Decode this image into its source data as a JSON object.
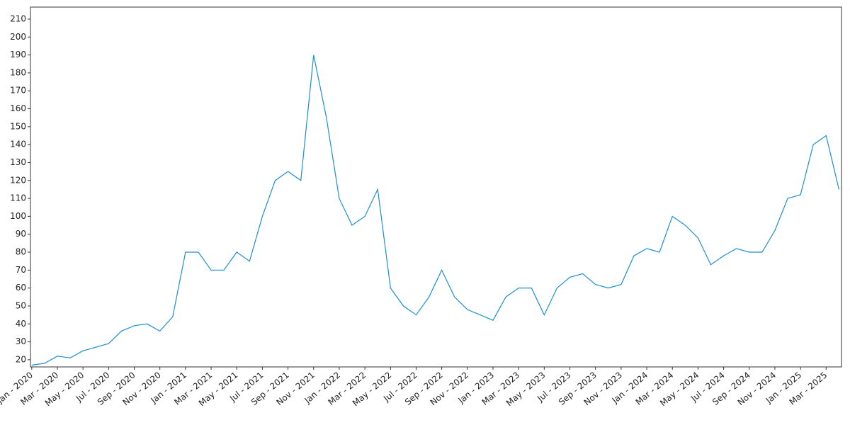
{
  "chart_data": {
    "type": "line",
    "x": [
      "2020-01",
      "2020-02",
      "2020-03",
      "2020-04",
      "2020-05",
      "2020-06",
      "2020-07",
      "2020-08",
      "2020-09",
      "2020-10",
      "2020-11",
      "2020-12",
      "2021-01",
      "2021-02",
      "2021-03",
      "2021-04",
      "2021-05",
      "2021-06",
      "2021-07",
      "2021-08",
      "2021-09",
      "2021-10",
      "2021-11",
      "2021-12",
      "2022-01",
      "2022-02",
      "2022-03",
      "2022-04",
      "2022-05",
      "2022-06",
      "2022-07",
      "2022-08",
      "2022-09",
      "2022-10",
      "2022-11",
      "2022-12",
      "2023-01",
      "2023-02",
      "2023-03",
      "2023-04",
      "2023-05",
      "2023-06",
      "2023-07",
      "2023-08",
      "2023-09",
      "2023-10",
      "2023-11",
      "2023-12",
      "2024-01",
      "2024-02",
      "2024-03",
      "2024-04",
      "2024-05",
      "2024-06",
      "2024-07",
      "2024-08",
      "2024-09",
      "2024-10",
      "2024-11",
      "2024-12",
      "2025-01",
      "2025-02",
      "2025-03",
      "2025-04"
    ],
    "series": [
      {
        "color": "#1a8fd5",
        "values": [
          17,
          18,
          22,
          21,
          25,
          27,
          29,
          36,
          39,
          40,
          36,
          44,
          80,
          80,
          70,
          70,
          80,
          75,
          100,
          120,
          125,
          120,
          190,
          155,
          110,
          95,
          100,
          115,
          60,
          50,
          45,
          55,
          70,
          55,
          48,
          45,
          42,
          55,
          60,
          60,
          45,
          60,
          66,
          68,
          62,
          60,
          62,
          78,
          82,
          80,
          100,
          95,
          88,
          73,
          78,
          82,
          80,
          80,
          92,
          110,
          112,
          140,
          145,
          115
        ]
      }
    ],
    "xlim": [
      "2019-12.9",
      "2025-04.2"
    ],
    "xticks": [
      {
        "value": "2020-01",
        "label": "Jan - 2020"
      },
      {
        "value": "2020-03",
        "label": "Mar - 2020"
      },
      {
        "value": "2020-05",
        "label": "May - 2020"
      },
      {
        "value": "2020-07",
        "label": "Jul - 2020"
      },
      {
        "value": "2020-09",
        "label": "Sep - 2020"
      },
      {
        "value": "2020-11",
        "label": "Nov - 2020"
      },
      {
        "value": "2021-01",
        "label": "Jan - 2021"
      },
      {
        "value": "2021-03",
        "label": "Mar - 2021"
      },
      {
        "value": "2021-05",
        "label": "May - 2021"
      },
      {
        "value": "2021-07",
        "label": "Jul - 2021"
      },
      {
        "value": "2021-09",
        "label": "Sep - 2021"
      },
      {
        "value": "2021-11",
        "label": "Nov - 2021"
      },
      {
        "value": "2022-01",
        "label": "Jan - 2022"
      },
      {
        "value": "2022-03",
        "label": "Mar - 2022"
      },
      {
        "value": "2022-05",
        "label": "May - 2022"
      },
      {
        "value": "2022-07",
        "label": "Jul - 2022"
      },
      {
        "value": "2022-09",
        "label": "Sep - 2022"
      },
      {
        "value": "2022-11",
        "label": "Nov - 2022"
      },
      {
        "value": "2023-01",
        "label": "Jan - 2023"
      },
      {
        "value": "2023-03",
        "label": "Mar - 2023"
      },
      {
        "value": "2023-05",
        "label": "May - 2023"
      },
      {
        "value": "2023-07",
        "label": "Jul - 2023"
      },
      {
        "value": "2023-09",
        "label": "Sep - 2023"
      },
      {
        "value": "2023-11",
        "label": "Nov - 2023"
      },
      {
        "value": "2024-01",
        "label": "Jan - 2024"
      },
      {
        "value": "2024-03",
        "label": "Mar - 2024"
      },
      {
        "value": "2024-05",
        "label": "May - 2024"
      },
      {
        "value": "2024-07",
        "label": "Jul - 2024"
      },
      {
        "value": "2024-09",
        "label": "Sep - 2024"
      },
      {
        "value": "2024-11",
        "label": "Nov - 2024"
      },
      {
        "value": "2025-01",
        "label": "Jan - 2025"
      },
      {
        "value": "2025-03",
        "label": "Mar - 2025"
      }
    ],
    "ylim": [
      16,
      216.7
    ],
    "yticks": [
      20,
      30,
      40,
      50,
      60,
      70,
      80,
      90,
      100,
      110,
      120,
      130,
      140,
      150,
      160,
      170,
      180,
      190,
      200,
      210
    ]
  }
}
